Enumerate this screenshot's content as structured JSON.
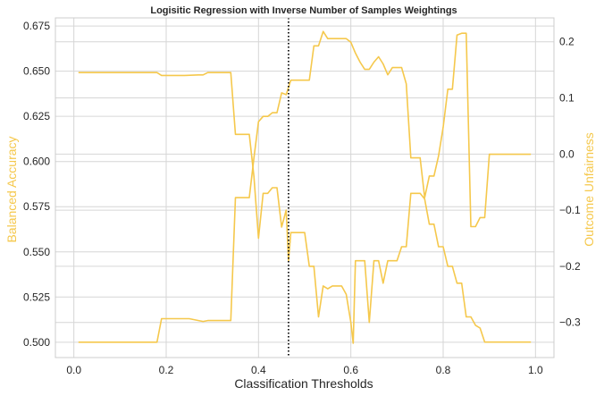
{
  "chart_data": {
    "type": "line",
    "title": "Logisitic Regression with Inverse Number of Samples Weightings",
    "xlabel": "Classification Thresholds",
    "ylabel_left": "Balanced Accuracy",
    "ylabel_right": "Outcome Unfairness",
    "xlim": [
      -0.04,
      1.04
    ],
    "ylim_left": [
      0.4915,
      0.6795
    ],
    "ylim_right": [
      -0.3625,
      0.2425
    ],
    "x_ticks": [
      0.0,
      0.2,
      0.4,
      0.6,
      0.8,
      1.0
    ],
    "x_tick_labels": [
      "0.0",
      "0.2",
      "0.4",
      "0.6",
      "0.8",
      "1.0"
    ],
    "y_left_ticks": [
      0.5,
      0.525,
      0.55,
      0.575,
      0.6,
      0.625,
      0.65,
      0.675
    ],
    "y_left_tick_labels": [
      "0.500",
      "0.525",
      "0.550",
      "0.575",
      "0.600",
      "0.625",
      "0.650",
      "0.675"
    ],
    "y_right_ticks": [
      -0.3,
      -0.2,
      -0.1,
      0.0,
      0.1,
      0.2
    ],
    "y_right_tick_labels": [
      "−0.3",
      "−0.2",
      "−0.1",
      "0.0",
      "0.1",
      "0.2"
    ],
    "grid": true,
    "vline_x": 0.465,
    "color": "#f5c84c",
    "vline_color": "#111111",
    "series": [
      {
        "axis": "left",
        "points": [
          [
            0.01,
            0.5
          ],
          [
            0.05,
            0.5
          ],
          [
            0.1,
            0.5
          ],
          [
            0.15,
            0.5
          ],
          [
            0.18,
            0.5
          ],
          [
            0.19,
            0.513
          ],
          [
            0.25,
            0.513
          ],
          [
            0.27,
            0.512
          ],
          [
            0.28,
            0.5115
          ],
          [
            0.29,
            0.512
          ],
          [
            0.31,
            0.512
          ],
          [
            0.34,
            0.512
          ],
          [
            0.35,
            0.58
          ],
          [
            0.38,
            0.58
          ],
          [
            0.39,
            0.602
          ],
          [
            0.4,
            0.622
          ],
          [
            0.41,
            0.625
          ],
          [
            0.42,
            0.625
          ],
          [
            0.43,
            0.627
          ],
          [
            0.44,
            0.627
          ],
          [
            0.45,
            0.638
          ],
          [
            0.46,
            0.637
          ],
          [
            0.47,
            0.645
          ],
          [
            0.49,
            0.645
          ],
          [
            0.5,
            0.645
          ],
          [
            0.51,
            0.645
          ],
          [
            0.52,
            0.664
          ],
          [
            0.53,
            0.664
          ],
          [
            0.54,
            0.672
          ],
          [
            0.55,
            0.668
          ],
          [
            0.57,
            0.668
          ],
          [
            0.59,
            0.668
          ],
          [
            0.6,
            0.666
          ],
          [
            0.61,
            0.66
          ],
          [
            0.62,
            0.655
          ],
          [
            0.63,
            0.651
          ],
          [
            0.64,
            0.651
          ],
          [
            0.65,
            0.655
          ],
          [
            0.66,
            0.658
          ],
          [
            0.67,
            0.654
          ],
          [
            0.68,
            0.648
          ],
          [
            0.69,
            0.652
          ],
          [
            0.71,
            0.652
          ],
          [
            0.72,
            0.643
          ],
          [
            0.73,
            0.602
          ],
          [
            0.75,
            0.602
          ],
          [
            0.76,
            0.58
          ],
          [
            0.77,
            0.592
          ],
          [
            0.78,
            0.592
          ],
          [
            0.79,
            0.603
          ],
          [
            0.8,
            0.619
          ],
          [
            0.81,
            0.64
          ],
          [
            0.82,
            0.64
          ],
          [
            0.83,
            0.67
          ],
          [
            0.84,
            0.671
          ],
          [
            0.85,
            0.671
          ],
          [
            0.86,
            0.564
          ],
          [
            0.87,
            0.564
          ],
          [
            0.88,
            0.569
          ],
          [
            0.89,
            0.569
          ],
          [
            0.9,
            0.604
          ],
          [
            0.95,
            0.604
          ],
          [
            0.99,
            0.604
          ]
        ]
      },
      {
        "axis": "right",
        "points": [
          [
            0.01,
            0.145
          ],
          [
            0.05,
            0.145
          ],
          [
            0.1,
            0.145
          ],
          [
            0.15,
            0.145
          ],
          [
            0.18,
            0.145
          ],
          [
            0.19,
            0.14
          ],
          [
            0.24,
            0.14
          ],
          [
            0.27,
            0.141
          ],
          [
            0.28,
            0.141
          ],
          [
            0.29,
            0.145
          ],
          [
            0.34,
            0.145
          ],
          [
            0.35,
            0.035
          ],
          [
            0.38,
            0.035
          ],
          [
            0.39,
            -0.04
          ],
          [
            0.4,
            -0.15
          ],
          [
            0.41,
            -0.07
          ],
          [
            0.42,
            -0.07
          ],
          [
            0.43,
            -0.06
          ],
          [
            0.44,
            -0.06
          ],
          [
            0.45,
            -0.13
          ],
          [
            0.46,
            -0.1
          ],
          [
            0.465,
            -0.19
          ],
          [
            0.47,
            -0.14
          ],
          [
            0.48,
            -0.14
          ],
          [
            0.49,
            -0.14
          ],
          [
            0.5,
            -0.14
          ],
          [
            0.51,
            -0.2
          ],
          [
            0.52,
            -0.2
          ],
          [
            0.53,
            -0.29
          ],
          [
            0.54,
            -0.235
          ],
          [
            0.55,
            -0.24
          ],
          [
            0.56,
            -0.235
          ],
          [
            0.58,
            -0.235
          ],
          [
            0.59,
            -0.25
          ],
          [
            0.6,
            -0.3
          ],
          [
            0.605,
            -0.337
          ],
          [
            0.61,
            -0.19
          ],
          [
            0.62,
            -0.19
          ],
          [
            0.63,
            -0.19
          ],
          [
            0.64,
            -0.3
          ],
          [
            0.65,
            -0.19
          ],
          [
            0.66,
            -0.19
          ],
          [
            0.67,
            -0.23
          ],
          [
            0.68,
            -0.19
          ],
          [
            0.69,
            -0.19
          ],
          [
            0.7,
            -0.19
          ],
          [
            0.71,
            -0.165
          ],
          [
            0.72,
            -0.165
          ],
          [
            0.73,
            -0.07
          ],
          [
            0.74,
            -0.07
          ],
          [
            0.75,
            -0.07
          ],
          [
            0.76,
            -0.08
          ],
          [
            0.77,
            -0.125
          ],
          [
            0.78,
            -0.125
          ],
          [
            0.79,
            -0.165
          ],
          [
            0.8,
            -0.165
          ],
          [
            0.81,
            -0.2
          ],
          [
            0.82,
            -0.2
          ],
          [
            0.83,
            -0.23
          ],
          [
            0.84,
            -0.23
          ],
          [
            0.85,
            -0.29
          ],
          [
            0.86,
            -0.29
          ],
          [
            0.87,
            -0.305
          ],
          [
            0.88,
            -0.31
          ],
          [
            0.89,
            -0.335
          ],
          [
            0.95,
            -0.335
          ],
          [
            0.99,
            -0.335
          ]
        ]
      }
    ]
  }
}
